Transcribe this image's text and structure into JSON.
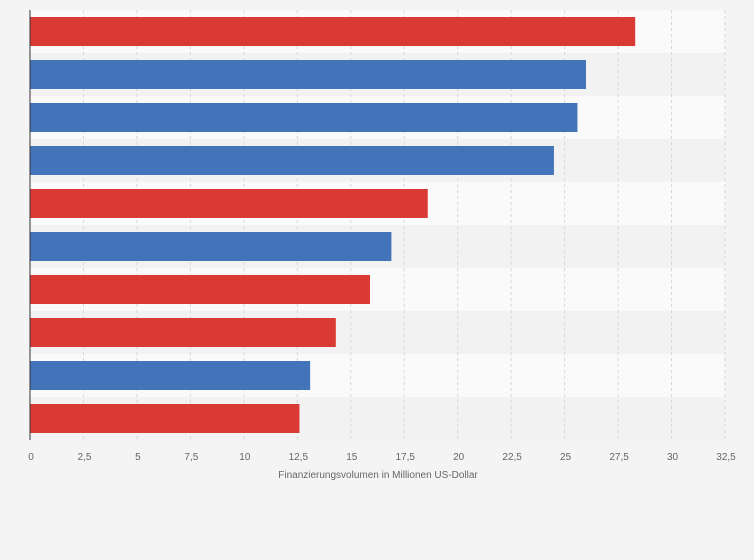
{
  "chart_data": {
    "type": "bar",
    "orientation": "horizontal",
    "title": "",
    "xlabel": "Finanzierungsvolumen in Millionen US-Dollar",
    "ylabel": "",
    "xlim": [
      0,
      32.5
    ],
    "ticks": [
      0,
      2.5,
      5,
      7.5,
      10,
      12.5,
      15,
      17.5,
      20,
      22.5,
      25,
      27.5,
      30,
      32.5
    ],
    "tick_labels": [
      "0",
      "2,5",
      "5",
      "7,5",
      "10",
      "12,5",
      "15",
      "17,5",
      "20",
      "22,5",
      "25",
      "27,5",
      "30",
      "32,5"
    ],
    "categories": [
      "",
      "",
      "",
      "",
      "",
      "",
      "",
      "",
      "",
      ""
    ],
    "values": [
      28.3,
      26.0,
      25.6,
      24.5,
      18.6,
      16.9,
      15.9,
      14.3,
      13.1,
      12.6
    ],
    "bar_colors": [
      "#d93a33",
      "#4374b9",
      "#4374b9",
      "#4374b9",
      "#d93a33",
      "#4374b9",
      "#d93a33",
      "#d93a33",
      "#4374b9",
      "#d93a33"
    ],
    "grid": true,
    "legend": "none"
  },
  "colors": {
    "red": "#d93a33",
    "blue": "#4374b9",
    "background": "#f4f4f4",
    "plot_band_light": "#fafafa",
    "plot_band_dark": "#f2f2f2"
  }
}
